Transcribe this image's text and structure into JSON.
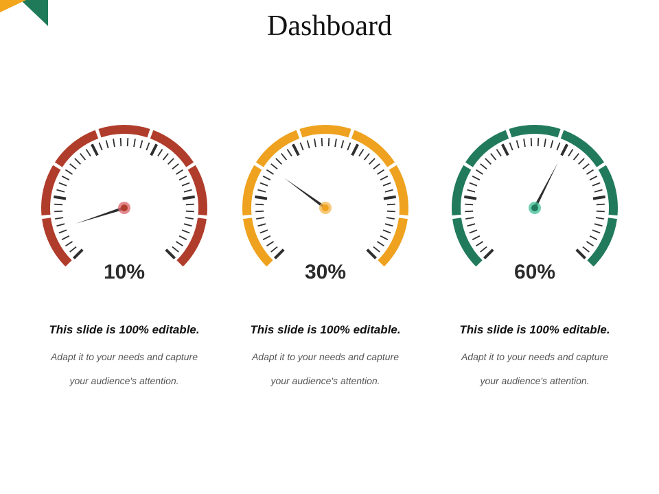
{
  "title": "Dashboard",
  "accent": {
    "corner_orange": "#f3a51c",
    "corner_green": "#1f7a5a"
  },
  "needle_color": "#2d2d2d",
  "chart_data": [
    {
      "type": "gauge",
      "value_percent": 10,
      "range": [
        0,
        100
      ],
      "label": "10%",
      "color": "#b03d2c",
      "hub_color": "#d9626a",
      "heading": "This slide is 100% editable.",
      "desc_line1": "Adapt it to your needs and capture",
      "desc_line2": "your audience's attention."
    },
    {
      "type": "gauge",
      "value_percent": 30,
      "range": [
        0,
        100
      ],
      "label": "30%",
      "color": "#eea21f",
      "hub_color": "#f5b64e",
      "heading": "This slide is 100% editable.",
      "desc_line1": "Adapt it to your needs and capture",
      "desc_line2": "your audience's attention."
    },
    {
      "type": "gauge",
      "value_percent": 60,
      "range": [
        0,
        100
      ],
      "label": "60%",
      "color": "#217a5b",
      "hub_color": "#3cbf95",
      "heading": "This slide is 100% editable.",
      "desc_line1": "Adapt it to your needs and capture",
      "desc_line2": "your audience's attention."
    }
  ]
}
